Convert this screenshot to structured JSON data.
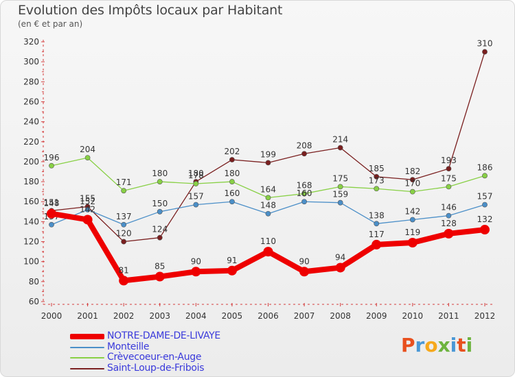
{
  "header": {
    "title": "Evolution des Impôts locaux par Habitant",
    "subtitle": "(en € et par an)"
  },
  "logo": {
    "letters": [
      "P",
      "r",
      "o",
      "x",
      "i",
      "t",
      "i"
    ],
    "colors": [
      "#e8501e",
      "#4a98d6",
      "#f6a81c",
      "#6db33f",
      "#4a98d6",
      "#e8501e",
      "#6db33f"
    ]
  },
  "chart_data": {
    "type": "line",
    "title": "Evolution des Impôts locaux par Habitant",
    "subtitle": "(en € et par an)",
    "xlabel": "",
    "ylabel": "",
    "categories": [
      "2000",
      "2001",
      "2002",
      "2003",
      "2004",
      "2005",
      "2006",
      "2007",
      "2008",
      "2009",
      "2010",
      "2011",
      "2012"
    ],
    "ylim": [
      60,
      320
    ],
    "yticks": [
      60,
      80,
      100,
      120,
      140,
      160,
      180,
      200,
      220,
      240,
      260,
      280,
      300,
      320
    ],
    "grid": false,
    "legend_position": "bottom-left",
    "series": [
      {
        "name": "Saint-Loup-de-Fribois",
        "color": "#7a1f1f",
        "values": [
          151,
          155,
          120,
          124,
          180,
          202,
          199,
          208,
          214,
          185,
          182,
          193,
          310
        ]
      },
      {
        "name": "Crèvecoeur-en-Auge",
        "color": "#88d045",
        "values": [
          196,
          204,
          171,
          180,
          178,
          180,
          164,
          168,
          175,
          173,
          170,
          175,
          186
        ]
      },
      {
        "name": "Monteille",
        "color": "#4b8fc8",
        "values": [
          137,
          152,
          137,
          150,
          157,
          160,
          148,
          160,
          159,
          138,
          142,
          146,
          157
        ]
      },
      {
        "name": "NOTRE-DAME-DE-LIVAYE",
        "color": "#ee0000",
        "values": [
          148,
          142,
          81,
          85,
          90,
          91,
          110,
          90,
          94,
          117,
          119,
          128,
          132
        ]
      }
    ]
  },
  "legend": [
    {
      "label": "NOTRE-DAME-DE-LIVAYE",
      "color": "#ee0000",
      "text_color": "#3a3adb"
    },
    {
      "label": "Monteille",
      "color": "#4b8fc8",
      "text_color": "#3a3adb"
    },
    {
      "label": "Crèvecoeur-en-Auge",
      "color": "#88d045",
      "text_color": "#3a3adb"
    },
    {
      "label": "Saint-Loup-de-Fribois",
      "color": "#7a1f1f",
      "text_color": "#3a3adb"
    }
  ]
}
